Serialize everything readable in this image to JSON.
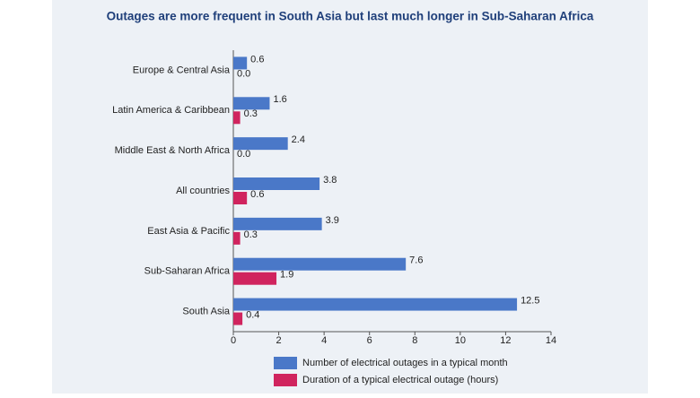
{
  "chart_data": {
    "type": "hbar",
    "title": "Outages are more frequent in South Asia but last much longer in Sub-Saharan Africa",
    "categories": [
      "Europe & Central Asia",
      "Latin America & Caribbean",
      "Middle East & North Africa",
      "All countries",
      "East Asia & Pacific",
      "Sub-Saharan Africa",
      "South Asia"
    ],
    "series": [
      {
        "name": "Number of electrical outages in a typical month",
        "color": "#4a78c8",
        "values": [
          0.6,
          1.6,
          2.4,
          3.8,
          3.9,
          7.6,
          12.5
        ],
        "value_labels": [
          "0.6",
          "1.6",
          "2.4",
          "3.8",
          "3.9",
          "7.6",
          "12.5"
        ]
      },
      {
        "name": "Duration of a typical electrical outage (hours)",
        "color": "#d0245e",
        "values": [
          0.0,
          0.3,
          0.0,
          0.6,
          0.3,
          1.9,
          0.4
        ],
        "value_labels": [
          "0.0",
          "0.3",
          "0.0",
          "0.6",
          "0.3",
          "1.9",
          "0.4"
        ]
      }
    ],
    "xlim": [
      0,
      14
    ],
    "xticks": [
      0,
      2,
      4,
      6,
      8,
      10,
      12,
      14
    ]
  }
}
